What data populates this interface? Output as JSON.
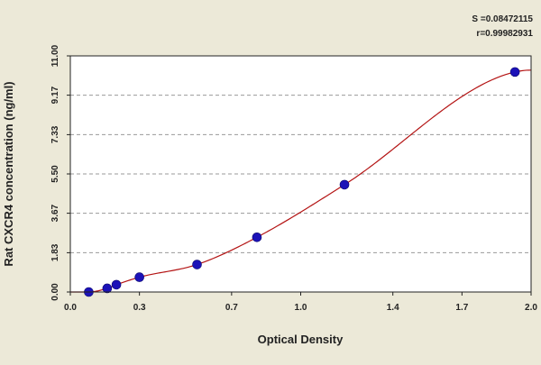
{
  "chart_data": {
    "type": "scatter",
    "title": "",
    "xlabel": "Optical Density",
    "ylabel": "Rat CXCR4 concentration (ng/ml)",
    "xlim": [
      0.0,
      2.0
    ],
    "ylim": [
      0.0,
      11.0
    ],
    "x_ticks": [
      "0.0",
      "0.3",
      "0.7",
      "1.0",
      "1.4",
      "1.7",
      "2.0"
    ],
    "y_ticks": [
      "0.00",
      "1.83",
      "3.67",
      "5.50",
      "7.33",
      "9.17",
      "11.00"
    ],
    "grid": "horizontal dashed",
    "stats": [
      "S =0.08472115",
      "r=0.99982931"
    ],
    "series": [
      {
        "kind": "points",
        "color": "#1c12b8",
        "x": [
          0.08,
          0.16,
          0.2,
          0.3,
          0.55,
          0.81,
          1.19,
          1.93
        ],
        "y": [
          0.0,
          0.17,
          0.34,
          0.69,
          1.28,
          2.55,
          5.0,
          10.25
        ]
      },
      {
        "kind": "fitted-curve",
        "color": "#b41414"
      }
    ]
  }
}
